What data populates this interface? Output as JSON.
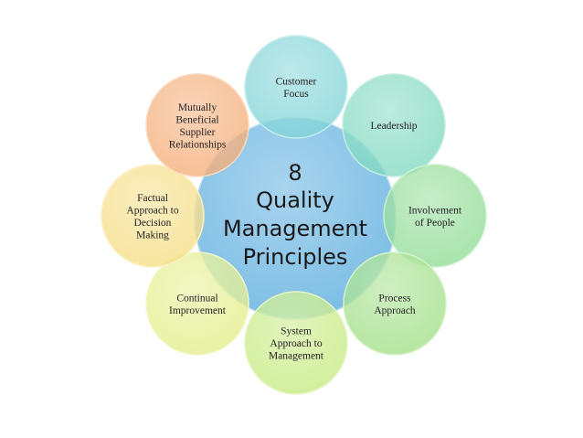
{
  "center": {
    "lines": [
      "8",
      "Quality",
      "Management",
      "Principles"
    ],
    "color": "#6FB7E2"
  },
  "principles": [
    {
      "key": "customer-focus",
      "lines": [
        "Customer",
        "Focus"
      ],
      "color": "#7ED3D6"
    },
    {
      "key": "leadership",
      "lines": [
        "Leadership"
      ],
      "color": "#7DD8BE"
    },
    {
      "key": "involvement-of-people",
      "lines": [
        "Involvement",
        "of People"
      ],
      "color": "#8EDB93"
    },
    {
      "key": "process-approach",
      "lines": [
        "Process",
        "Approach"
      ],
      "color": "#9FDF86"
    },
    {
      "key": "system-approach",
      "lines": [
        "System",
        "Approach to",
        "Management"
      ],
      "color": "#C5EA7E"
    },
    {
      "key": "continual-improvement",
      "lines": [
        "Continual",
        "Improvement"
      ],
      "color": "#E3EE88"
    },
    {
      "key": "factual-approach",
      "lines": [
        "Factual",
        "Approach to",
        "Decision",
        "Making"
      ],
      "color": "#F5DD82"
    },
    {
      "key": "mutually-beneficial",
      "lines": [
        "Mutually",
        "Beneficial",
        "Supplier",
        "Relationships"
      ],
      "color": "#F4AB74"
    }
  ]
}
